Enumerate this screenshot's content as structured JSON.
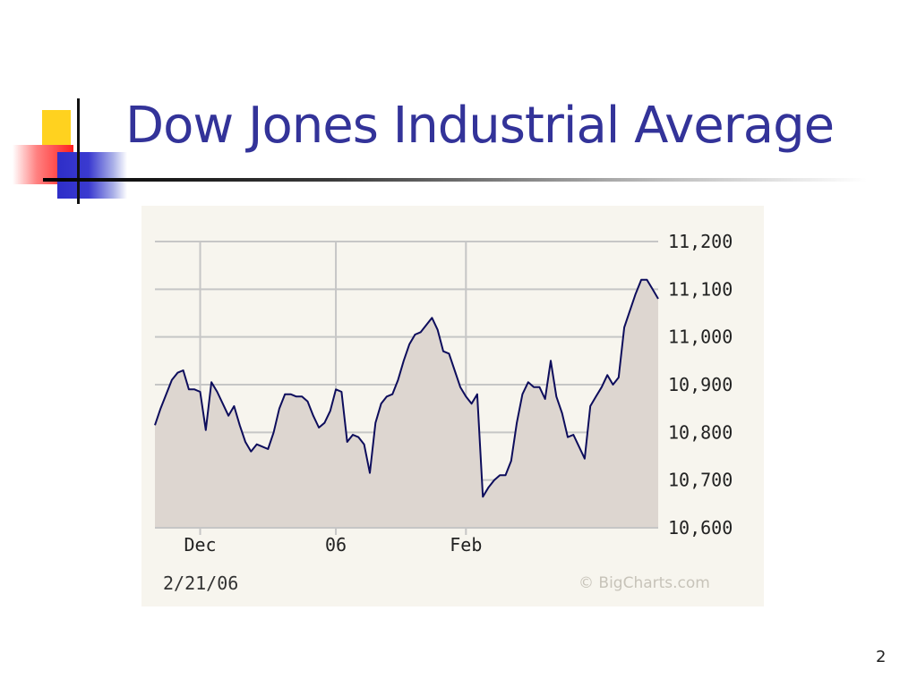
{
  "slide": {
    "title": "Dow Jones Industrial Average",
    "page_number": "2"
  },
  "chart_data": {
    "type": "area",
    "date_stamp": "2/21/06",
    "credit": "© BigCharts.com",
    "y_range": [
      10600,
      11200
    ],
    "y_ticks": [
      {
        "value": 11200,
        "label": "11,200"
      },
      {
        "value": 11100,
        "label": "11,100"
      },
      {
        "value": 11000,
        "label": "11,000"
      },
      {
        "value": 10900,
        "label": "10,900"
      },
      {
        "value": 10800,
        "label": "10,800"
      },
      {
        "value": 10700,
        "label": "10,700"
      },
      {
        "value": 10600,
        "label": "10,600"
      }
    ],
    "x_ticks": [
      {
        "index": 8,
        "label": "Dec"
      },
      {
        "index": 32,
        "label": "06"
      },
      {
        "index": 55,
        "label": "Feb"
      }
    ],
    "values": [
      10815,
      10850,
      10880,
      10910,
      10925,
      10930,
      10890,
      10890,
      10885,
      10805,
      10905,
      10885,
      10860,
      10835,
      10855,
      10815,
      10780,
      10760,
      10775,
      10770,
      10765,
      10800,
      10850,
      10880,
      10880,
      10875,
      10875,
      10865,
      10835,
      10810,
      10820,
      10845,
      10890,
      10885,
      10780,
      10795,
      10790,
      10775,
      10715,
      10820,
      10860,
      10875,
      10880,
      10910,
      10950,
      10985,
      11005,
      11010,
      11025,
      11040,
      11015,
      10970,
      10965,
      10930,
      10895,
      10875,
      10860,
      10880,
      10665,
      10685,
      10700,
      10710,
      10710,
      10740,
      10820,
      10880,
      10905,
      10895,
      10895,
      10870,
      10950,
      10875,
      10840,
      10790,
      10795,
      10770,
      10745,
      10855,
      10875,
      10895,
      10920,
      10900,
      10915,
      11020,
      11055,
      11090,
      11120,
      11120,
      11100,
      11080
    ],
    "colors": {
      "line": "#0d0d5c",
      "fill": "#ddd6d0",
      "grid": "#c6c6c6",
      "background": "#f7f5ee"
    }
  }
}
